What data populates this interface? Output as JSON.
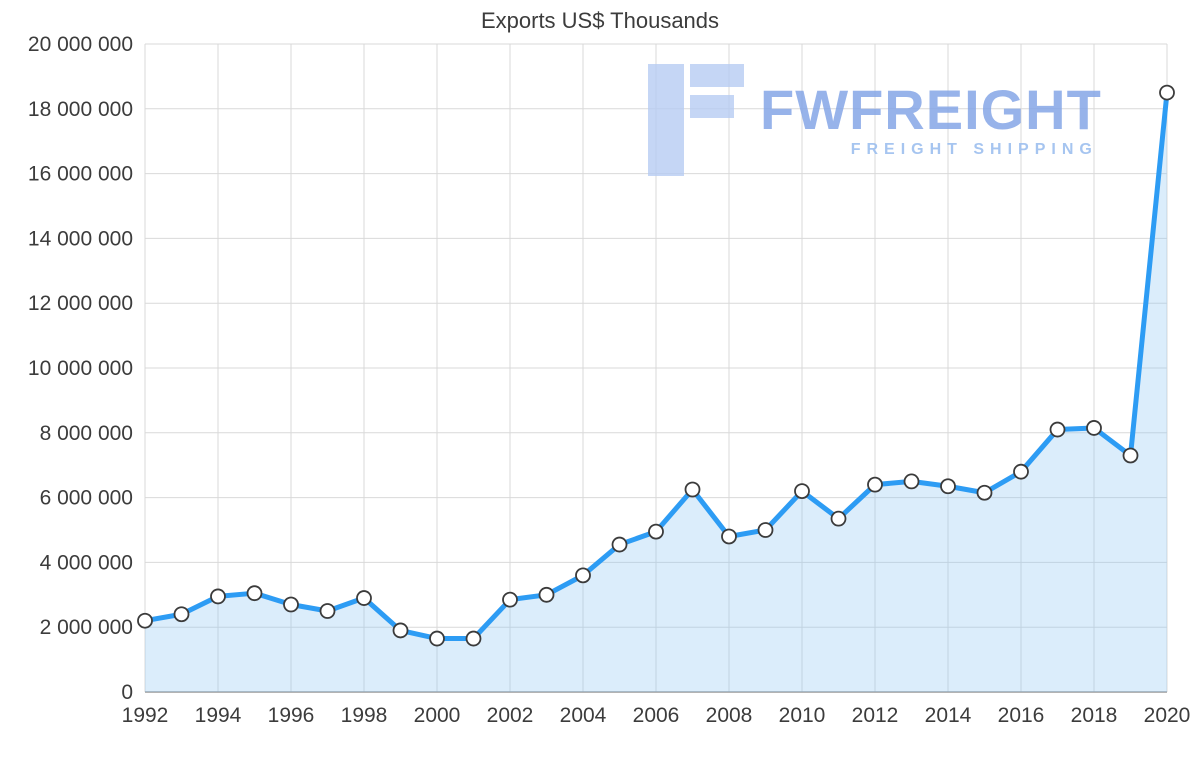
{
  "watermark": {
    "brand": "FWFREIGHT",
    "tagline": "FREIGHT SHIPPING",
    "logo_color": "#b7ccf3",
    "brand_color": "#85a6e7",
    "tagline_color": "#9dbfef"
  },
  "chart_data": {
    "type": "area",
    "title": "Exports US$ Thousands",
    "xlabel": "",
    "ylabel": "",
    "x": [
      1992,
      1993,
      1994,
      1995,
      1996,
      1997,
      1998,
      1999,
      2000,
      2001,
      2002,
      2003,
      2004,
      2005,
      2006,
      2007,
      2008,
      2009,
      2010,
      2011,
      2012,
      2013,
      2014,
      2015,
      2016,
      2017,
      2018,
      2019,
      2020
    ],
    "values": [
      2200000,
      2400000,
      2950000,
      3050000,
      2700000,
      2500000,
      2900000,
      1900000,
      1650000,
      1650000,
      2850000,
      3000000,
      3600000,
      4550000,
      4950000,
      6250000,
      4800000,
      5000000,
      6200000,
      5350000,
      6400000,
      6500000,
      6350000,
      6150000,
      6800000,
      8100000,
      8150000,
      7300000,
      18500000
    ],
    "ylim": [
      0,
      20000000
    ],
    "y_tick_step": 2000000,
    "y_tick_labels": [
      "0",
      "2 000 000",
      "4 000 000",
      "6 000 000",
      "8 000 000",
      "10 000 000",
      "12 000 000",
      "14 000 000",
      "16 000 000",
      "18 000 000",
      "20 000 000"
    ],
    "x_tick_labels": [
      "1992",
      "1994",
      "1996",
      "1998",
      "2000",
      "2002",
      "2004",
      "2006",
      "2008",
      "2010",
      "2012",
      "2014",
      "2016",
      "2018",
      "2020"
    ],
    "grid": true,
    "legend": "none",
    "colors": {
      "line": "#2d9cf4",
      "area_fill": "#90c8f4",
      "area_opacity": "0.32",
      "marker_fill": "#ffffff",
      "marker_stroke": "#3b3b3b",
      "grid_line": "#d9d9d9",
      "axis_line": "#9a9a9a",
      "tick_text": "#3c3c3c"
    }
  }
}
